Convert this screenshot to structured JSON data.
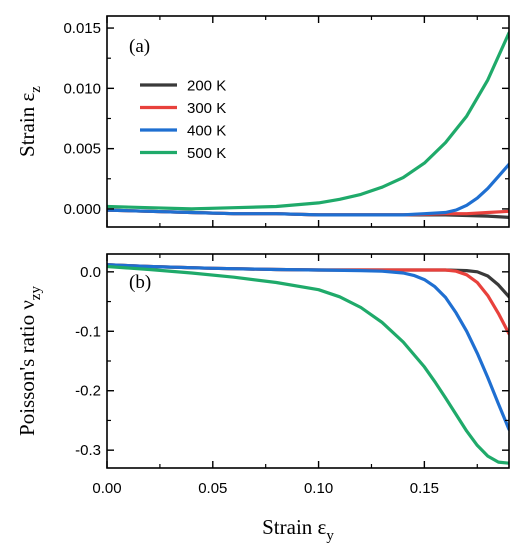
{
  "chart_data": [
    {
      "panel": "(a)",
      "type": "line",
      "ylabel_main": "Strain ε",
      "ylabel_sub": "z",
      "xlim": [
        0.0,
        0.19
      ],
      "ylim": [
        -0.0015,
        0.016
      ],
      "yticks": [
        0.0,
        0.005,
        0.01,
        0.015
      ],
      "ytick_labels": [
        "0.000",
        "0.005",
        "0.010",
        "0.015"
      ],
      "xticks": [
        0.0,
        0.05,
        0.1,
        0.15
      ],
      "legend_position": "left",
      "series": [
        {
          "name": "200 K",
          "color": "#3a3a3a",
          "x": [
            0.0,
            0.02,
            0.04,
            0.06,
            0.08,
            0.1,
            0.12,
            0.14,
            0.16,
            0.18,
            0.19
          ],
          "y": [
            -0.0001,
            -0.0002,
            -0.0003,
            -0.0004,
            -0.0004,
            -0.0005,
            -0.0005,
            -0.0005,
            -0.0005,
            -0.0006,
            -0.0007
          ]
        },
        {
          "name": "300 K",
          "color": "#e8413c",
          "x": [
            0.0,
            0.02,
            0.04,
            0.06,
            0.08,
            0.1,
            0.12,
            0.14,
            0.16,
            0.17,
            0.18,
            0.19
          ],
          "y": [
            -0.0001,
            -0.0002,
            -0.0003,
            -0.0004,
            -0.0004,
            -0.0005,
            -0.0005,
            -0.0005,
            -0.0004,
            -0.0004,
            -0.0003,
            -0.0002
          ]
        },
        {
          "name": "400 K",
          "color": "#1f6fd1",
          "x": [
            0.0,
            0.02,
            0.04,
            0.06,
            0.08,
            0.1,
            0.12,
            0.14,
            0.15,
            0.16,
            0.165,
            0.17,
            0.175,
            0.18,
            0.185,
            0.19
          ],
          "y": [
            -0.0001,
            -0.0002,
            -0.0003,
            -0.0004,
            -0.0004,
            -0.0005,
            -0.0005,
            -0.0005,
            -0.0004,
            -0.0003,
            -0.0001,
            0.0003,
            0.0009,
            0.0017,
            0.0027,
            0.0037
          ]
        },
        {
          "name": "500 K",
          "color": "#1faa6a",
          "x": [
            0.0,
            0.02,
            0.04,
            0.06,
            0.08,
            0.1,
            0.11,
            0.12,
            0.13,
            0.14,
            0.15,
            0.16,
            0.17,
            0.18,
            0.19
          ],
          "y": [
            0.0002,
            0.0001,
            0.0,
            0.0001,
            0.0002,
            0.0005,
            0.0008,
            0.0012,
            0.0018,
            0.0026,
            0.0038,
            0.0055,
            0.0077,
            0.0107,
            0.0146
          ]
        }
      ]
    },
    {
      "panel": "(b)",
      "type": "line",
      "ylabel_main": "Poisson's ratio ν",
      "ylabel_sub": "zy",
      "xlim": [
        0.0,
        0.19
      ],
      "ylim": [
        -0.33,
        0.03
      ],
      "yticks": [
        0.0,
        -0.1,
        -0.2,
        -0.3
      ],
      "ytick_labels": [
        "0.0",
        "-0.1",
        "-0.2",
        "-0.3"
      ],
      "xticks": [
        0.0,
        0.05,
        0.1,
        0.15
      ],
      "xtick_labels": [
        "0.00",
        "0.05",
        "0.10",
        "0.15"
      ],
      "xlabel_main": "Strain ε",
      "xlabel_sub": "y",
      "series": [
        {
          "name": "200 K",
          "color": "#3a3a3a",
          "x": [
            0.0,
            0.02,
            0.05,
            0.08,
            0.1,
            0.12,
            0.14,
            0.16,
            0.17,
            0.175,
            0.18,
            0.185,
            0.19
          ],
          "y": [
            0.012,
            0.009,
            0.006,
            0.004,
            0.003,
            0.003,
            0.003,
            0.003,
            0.002,
            0.0,
            -0.007,
            -0.022,
            -0.042
          ]
        },
        {
          "name": "300 K",
          "color": "#e8413c",
          "x": [
            0.0,
            0.02,
            0.05,
            0.08,
            0.1,
            0.12,
            0.14,
            0.16,
            0.165,
            0.17,
            0.175,
            0.18,
            0.185,
            0.19
          ],
          "y": [
            0.012,
            0.009,
            0.006,
            0.004,
            0.003,
            0.003,
            0.003,
            0.003,
            0.001,
            -0.005,
            -0.018,
            -0.04,
            -0.07,
            -0.104
          ]
        },
        {
          "name": "400 K",
          "color": "#1f6fd1",
          "x": [
            0.0,
            0.02,
            0.05,
            0.08,
            0.1,
            0.12,
            0.13,
            0.14,
            0.145,
            0.15,
            0.155,
            0.16,
            0.165,
            0.17,
            0.175,
            0.18,
            0.185,
            0.19
          ],
          "y": [
            0.012,
            0.009,
            0.006,
            0.004,
            0.003,
            0.002,
            0.001,
            -0.002,
            -0.006,
            -0.013,
            -0.025,
            -0.043,
            -0.069,
            -0.1,
            -0.137,
            -0.178,
            -0.222,
            -0.265
          ]
        },
        {
          "name": "500 K",
          "color": "#1faa6a",
          "x": [
            0.0,
            0.02,
            0.04,
            0.06,
            0.08,
            0.1,
            0.11,
            0.12,
            0.13,
            0.14,
            0.15,
            0.155,
            0.16,
            0.165,
            0.17,
            0.175,
            0.18,
            0.185,
            0.19
          ],
          "y": [
            0.009,
            0.004,
            -0.002,
            -0.009,
            -0.018,
            -0.03,
            -0.042,
            -0.06,
            -0.085,
            -0.118,
            -0.16,
            -0.185,
            -0.212,
            -0.24,
            -0.268,
            -0.292,
            -0.31,
            -0.32,
            -0.322
          ]
        }
      ]
    }
  ]
}
